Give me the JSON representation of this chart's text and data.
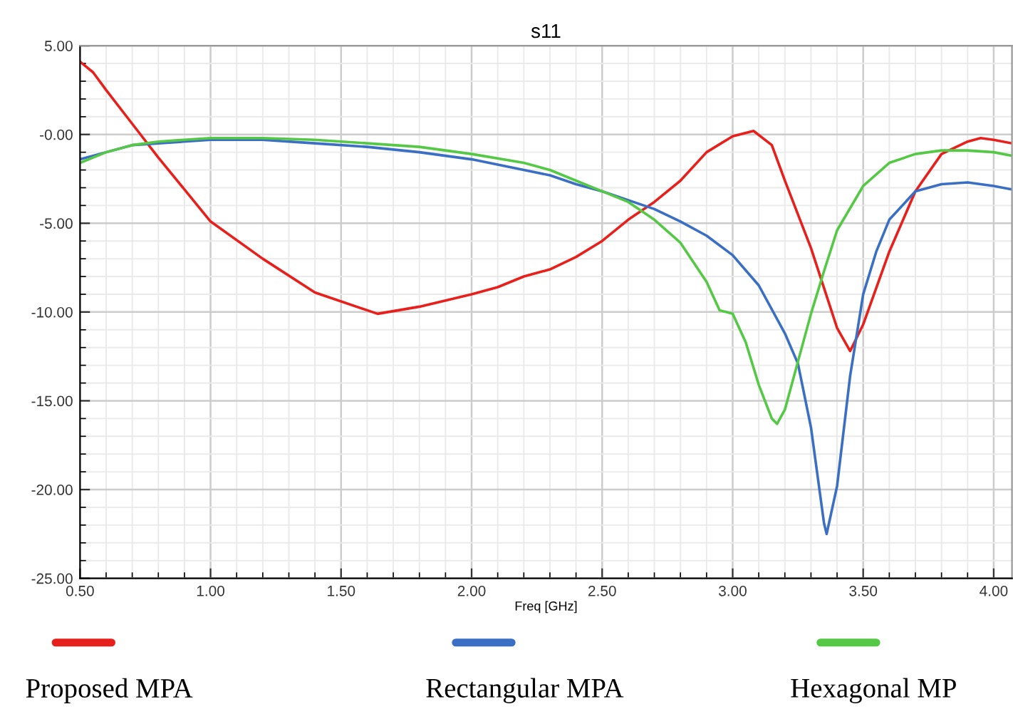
{
  "chart_data": {
    "type": "line",
    "title": "s11",
    "xlabel": "Freq [GHz]",
    "xlim": [
      0.5,
      4.07
    ],
    "ylim": [
      -25,
      5
    ],
    "xticks": [
      {
        "value": 0.5,
        "label": "0.50"
      },
      {
        "value": 1.0,
        "label": "1.00"
      },
      {
        "value": 1.5,
        "label": "1.50"
      },
      {
        "value": 2.0,
        "label": "2.00"
      },
      {
        "value": 2.5,
        "label": "2.50"
      },
      {
        "value": 3.0,
        "label": "3.00"
      },
      {
        "value": 3.5,
        "label": "3.50"
      },
      {
        "value": 4.0,
        "label": "4.00"
      }
    ],
    "yticks": [
      {
        "value": 5,
        "label": "5.00"
      },
      {
        "value": 0,
        "label": "-0.00"
      },
      {
        "value": -5,
        "label": "-5.00"
      },
      {
        "value": -10,
        "label": "-10.00"
      },
      {
        "value": -15,
        "label": "-15.00"
      },
      {
        "value": -20,
        "label": "-20.00"
      },
      {
        "value": -25,
        "label": "-25.00"
      }
    ],
    "grid": true,
    "legend": "bottom",
    "marker": "none",
    "line_style": "solid",
    "series": [
      {
        "name": "Proposed MPA",
        "color": "#e8201c",
        "x": [
          0.5,
          0.55,
          0.6,
          0.7,
          0.8,
          0.9,
          1.0,
          1.2,
          1.4,
          1.64,
          1.8,
          2.0,
          2.1,
          2.2,
          2.3,
          2.4,
          2.5,
          2.6,
          2.7,
          2.8,
          2.9,
          3.0,
          3.08,
          3.15,
          3.2,
          3.3,
          3.4,
          3.45,
          3.5,
          3.6,
          3.7,
          3.8,
          3.9,
          3.95,
          4.0,
          4.07
        ],
        "values": [
          4.1,
          3.5,
          2.5,
          0.6,
          -1.3,
          -3.1,
          -4.9,
          -7.0,
          -8.9,
          -10.1,
          -9.7,
          -9.0,
          -8.6,
          -8.0,
          -7.6,
          -6.9,
          -6.0,
          -4.8,
          -3.8,
          -2.6,
          -1.0,
          -0.1,
          0.2,
          -0.6,
          -2.6,
          -6.4,
          -10.9,
          -12.2,
          -10.7,
          -6.6,
          -3.2,
          -1.1,
          -0.4,
          -0.2,
          -0.3,
          -0.5
        ]
      },
      {
        "name": "Rectangular MPA",
        "color": "#3a6fc4",
        "x": [
          0.5,
          0.6,
          0.7,
          0.8,
          1.0,
          1.2,
          1.4,
          1.6,
          1.8,
          2.0,
          2.2,
          2.3,
          2.4,
          2.5,
          2.6,
          2.7,
          2.8,
          2.9,
          3.0,
          3.1,
          3.2,
          3.25,
          3.3,
          3.35,
          3.36,
          3.4,
          3.45,
          3.5,
          3.55,
          3.6,
          3.7,
          3.8,
          3.9,
          4.0,
          4.07
        ],
        "values": [
          -1.4,
          -1.0,
          -0.6,
          -0.5,
          -0.3,
          -0.3,
          -0.5,
          -0.7,
          -1.0,
          -1.4,
          -2.0,
          -2.3,
          -2.8,
          -3.2,
          -3.7,
          -4.2,
          -4.9,
          -5.7,
          -6.8,
          -8.5,
          -11.2,
          -12.9,
          -16.5,
          -21.9,
          -22.5,
          -19.8,
          -13.6,
          -9.0,
          -6.6,
          -4.8,
          -3.2,
          -2.8,
          -2.7,
          -2.9,
          -3.1
        ]
      },
      {
        "name": "Hexagonal MP",
        "color": "#55c846",
        "x": [
          0.5,
          0.6,
          0.7,
          0.8,
          1.0,
          1.2,
          1.4,
          1.6,
          1.8,
          2.0,
          2.2,
          2.3,
          2.4,
          2.5,
          2.6,
          2.7,
          2.8,
          2.9,
          2.95,
          3.0,
          3.05,
          3.1,
          3.15,
          3.17,
          3.2,
          3.25,
          3.3,
          3.35,
          3.4,
          3.5,
          3.6,
          3.7,
          3.8,
          3.9,
          4.0,
          4.07
        ],
        "values": [
          -1.6,
          -1.0,
          -0.6,
          -0.4,
          -0.2,
          -0.2,
          -0.3,
          -0.5,
          -0.7,
          -1.1,
          -1.6,
          -2.0,
          -2.6,
          -3.2,
          -3.8,
          -4.8,
          -6.1,
          -8.3,
          -9.9,
          -10.1,
          -11.7,
          -14.1,
          -16.0,
          -16.3,
          -15.5,
          -12.8,
          -10.1,
          -7.7,
          -5.4,
          -2.9,
          -1.6,
          -1.1,
          -0.9,
          -0.9,
          -1.0,
          -1.2
        ]
      }
    ]
  }
}
